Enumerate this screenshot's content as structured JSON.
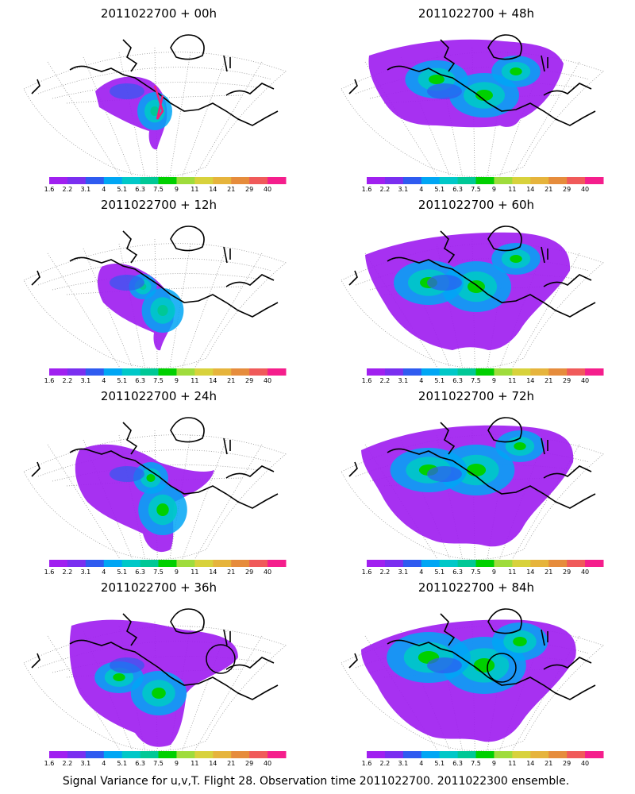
{
  "caption": "Signal Variance for u,v,T. Flight 28. Observation time 2011022700. 2011022300 ensemble.",
  "colorbar": {
    "labels": [
      "1.6",
      "2.2",
      "3.1",
      "4",
      "5.1",
      "6.3",
      "7.5",
      "9",
      "11",
      "14",
      "21",
      "29",
      "40"
    ],
    "colors": [
      "#a020f0",
      "#7a2ff0",
      "#2f5bf0",
      "#00a6f4",
      "#00c8c8",
      "#00c896",
      "#00d000",
      "#9fdc3c",
      "#d8d23c",
      "#e6b43c",
      "#e68c3c",
      "#f05a5a",
      "#f51e8c"
    ]
  },
  "panels": [
    {
      "title": "2011022700 + 00h",
      "level": 0,
      "circle": false,
      "track": true
    },
    {
      "title": "2011022700 + 48h",
      "level": 4,
      "circle": false,
      "track": false
    },
    {
      "title": "2011022700 + 12h",
      "level": 1,
      "circle": false,
      "track": false
    },
    {
      "title": "2011022700 + 60h",
      "level": 5,
      "circle": false,
      "track": false
    },
    {
      "title": "2011022700 + 24h",
      "level": 2,
      "circle": false,
      "track": false
    },
    {
      "title": "2011022700 + 72h",
      "level": 6,
      "circle": false,
      "track": false
    },
    {
      "title": "2011022700 + 36h",
      "level": 3,
      "circle": true,
      "track": false
    },
    {
      "title": "2011022700 + 84h",
      "level": 7,
      "circle": true,
      "track": false
    }
  ]
}
